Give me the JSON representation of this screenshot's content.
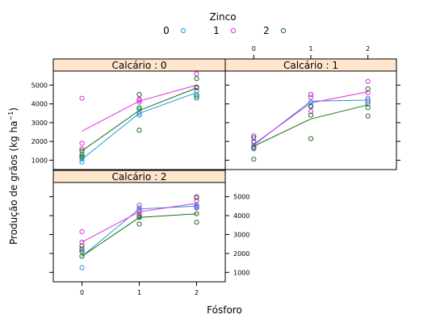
{
  "chart_data": {
    "type": "scatter",
    "title": "",
    "xlabel": "Fósforo",
    "ylabel": "Produção de grãos (kg ha",
    "ylabel_sup": "−1",
    "ylabel_tail": ")",
    "legend": {
      "title": "Zinco",
      "placement": "top",
      "entries": [
        {
          "label": "0",
          "color": "#1e9bd6"
        },
        {
          "label": "1",
          "color": "#e02de0"
        },
        {
          "label": "2",
          "color": "#1b6e1b"
        }
      ]
    },
    "xlim": [
      -0.5,
      2.5
    ],
    "ylim": [
      500,
      5750
    ],
    "x_ticks": [
      "0",
      "1",
      "2"
    ],
    "y_ticks": [
      1000,
      2000,
      3000,
      4000,
      5000
    ],
    "y_tick_labels": [
      "1000",
      "2000",
      "3000",
      "4000",
      "5000"
    ],
    "panels": [
      {
        "strip": "Calcário : 0",
        "series": [
          {
            "zinco": "0",
            "color": "#1e9bd6",
            "points": [
              [
                0,
                900
              ],
              [
                0,
                1050
              ],
              [
                0,
                1150
              ],
              [
                1,
                3400
              ],
              [
                1,
                3500
              ],
              [
                1,
                3700
              ],
              [
                2,
                4300
              ],
              [
                2,
                4500
              ],
              [
                2,
                4700
              ]
            ],
            "line": [
              [
                0,
                1050
              ],
              [
                1,
                3500
              ],
              [
                2,
                4600
              ]
            ]
          },
          {
            "zinco": "1",
            "color": "#e02de0",
            "points": [
              [
                0,
                4300
              ],
              [
                0,
                1900
              ],
              [
                0,
                1600
              ],
              [
                1,
                4100
              ],
              [
                1,
                4200
              ],
              [
                1,
                4250
              ],
              [
                2,
                5600
              ],
              [
                2,
                4900
              ],
              [
                2,
                4850
              ]
            ],
            "line": [
              [
                0,
                2550
              ],
              [
                1,
                4150
              ],
              [
                2,
                5000
              ]
            ]
          },
          {
            "zinco": "2",
            "color": "#1b6e1b",
            "points": [
              [
                0,
                1200
              ],
              [
                0,
                1500
              ],
              [
                0,
                1300
              ],
              [
                1,
                2600
              ],
              [
                1,
                3800
              ],
              [
                1,
                4500
              ],
              [
                2,
                5350
              ],
              [
                2,
                4900
              ],
              [
                2,
                4400
              ]
            ],
            "line": [
              [
                0,
                1500
              ],
              [
                1,
                3650
              ],
              [
                2,
                4850
              ]
            ]
          }
        ]
      },
      {
        "strip": "Calcário : 1",
        "series": [
          {
            "zinco": "0",
            "color": "#1e9bd6",
            "points": [
              [
                0,
                1600
              ],
              [
                0,
                1800
              ],
              [
                0,
                2000
              ],
              [
                1,
                3900
              ],
              [
                1,
                4100
              ],
              [
                1,
                4500
              ],
              [
                2,
                4100
              ],
              [
                2,
                4300
              ],
              [
                2,
                4000
              ]
            ],
            "line": [
              [
                0,
                1800
              ],
              [
                1,
                4150
              ],
              [
                2,
                4200
              ]
            ]
          },
          {
            "zinco": "1",
            "color": "#e02de0",
            "points": [
              [
                0,
                2300
              ],
              [
                0,
                1950
              ],
              [
                0,
                1650
              ],
              [
                1,
                4500
              ],
              [
                1,
                4350
              ],
              [
                1,
                3600
              ],
              [
                2,
                5200
              ],
              [
                2,
                4600
              ],
              [
                2,
                4200
              ]
            ],
            "line": [
              [
                0,
                1850
              ],
              [
                1,
                4050
              ],
              [
                2,
                4650
              ]
            ]
          },
          {
            "zinco": "2",
            "color": "#1b6e1b",
            "points": [
              [
                0,
                1050
              ],
              [
                0,
                1700
              ],
              [
                0,
                2200
              ],
              [
                1,
                2150
              ],
              [
                1,
                3400
              ],
              [
                1,
                3850
              ],
              [
                2,
                3350
              ],
              [
                2,
                3800
              ],
              [
                2,
                4800
              ]
            ],
            "line": [
              [
                0,
                1750
              ],
              [
                1,
                3200
              ],
              [
                2,
                3950
              ]
            ]
          }
        ]
      },
      {
        "strip": "Calcário : 2",
        "series": [
          {
            "zinco": "0",
            "color": "#1e9bd6",
            "points": [
              [
                0,
                1250
              ],
              [
                0,
                2100
              ],
              [
                0,
                2200
              ],
              [
                1,
                4550
              ],
              [
                1,
                4300
              ],
              [
                1,
                4250
              ],
              [
                2,
                4400
              ],
              [
                2,
                4500
              ],
              [
                2,
                4550
              ]
            ],
            "line": [
              [
                0,
                1850
              ],
              [
                1,
                4350
              ],
              [
                2,
                4500
              ]
            ]
          },
          {
            "zinco": "1",
            "color": "#e02de0",
            "points": [
              [
                0,
                3150
              ],
              [
                0,
                2600
              ],
              [
                0,
                2250
              ],
              [
                1,
                4200
              ],
              [
                1,
                4050
              ],
              [
                1,
                4400
              ],
              [
                2,
                5000
              ],
              [
                2,
                4800
              ],
              [
                2,
                4450
              ]
            ],
            "line": [
              [
                0,
                2600
              ],
              [
                1,
                4200
              ],
              [
                2,
                4650
              ]
            ]
          },
          {
            "zinco": "2",
            "color": "#1b6e1b",
            "points": [
              [
                0,
                1850
              ],
              [
                0,
                2400
              ],
              [
                0,
                2100
              ],
              [
                1,
                3550
              ],
              [
                1,
                3950
              ],
              [
                1,
                3900
              ],
              [
                2,
                3650
              ],
              [
                2,
                4100
              ],
              [
                2,
                4950
              ]
            ],
            "line": [
              [
                0,
                1850
              ],
              [
                1,
                3900
              ],
              [
                2,
                4100
              ]
            ]
          }
        ]
      }
    ]
  }
}
